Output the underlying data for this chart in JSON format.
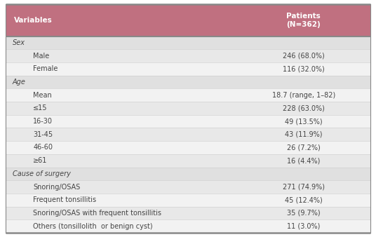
{
  "title_col1": "Variables",
  "title_col2": "Patients\n(N=362)",
  "header_bg": "#c07080",
  "header_text_color": "#ffffff",
  "section_bg": "#e0e0e0",
  "row_bg_light": "#f2f2f2",
  "row_bg_dark": "#e8e8e8",
  "border_color": "#888888",
  "thin_border_color": "#cccccc",
  "text_color": "#444444",
  "rows": [
    {
      "label": "Sex",
      "value": "",
      "indent": 0,
      "is_section": true
    },
    {
      "label": "Male",
      "value": "246 (68.0%)",
      "indent": 1,
      "is_section": false
    },
    {
      "label": "Female",
      "value": "116 (32.0%)",
      "indent": 1,
      "is_section": false
    },
    {
      "label": "Age",
      "value": "",
      "indent": 0,
      "is_section": true
    },
    {
      "label": "Mean",
      "value": "18.7 (range, 1–82)",
      "indent": 1,
      "is_section": false
    },
    {
      "label": "≤15",
      "value": "228 (63.0%)",
      "indent": 1,
      "is_section": false
    },
    {
      "label": "16-30",
      "value": "49 (13.5%)",
      "indent": 1,
      "is_section": false
    },
    {
      "label": "31-45",
      "value": "43 (11.9%)",
      "indent": 1,
      "is_section": false
    },
    {
      "label": "46-60",
      "value": "26 (7.2%)",
      "indent": 1,
      "is_section": false
    },
    {
      "label": "≥61",
      "value": "16 (4.4%)",
      "indent": 1,
      "is_section": false
    },
    {
      "label": "Cause of surgery",
      "value": "",
      "indent": 0,
      "is_section": true
    },
    {
      "label": "Snoring/OSAS",
      "value": "271 (74.9%)",
      "indent": 1,
      "is_section": false
    },
    {
      "label": "Frequent tonsillitis",
      "value": "45 (12.4%)",
      "indent": 1,
      "is_section": false
    },
    {
      "label": "Snoring/OSAS with frequent tonsillitis",
      "value": "35 (9.7%)",
      "indent": 1,
      "is_section": false
    },
    {
      "label": "Others (tonsillolith  or benign cyst)",
      "value": "11 (3.0%)",
      "indent": 1,
      "is_section": false
    }
  ],
  "fig_width": 5.36,
  "fig_height": 3.38,
  "dpi": 100
}
